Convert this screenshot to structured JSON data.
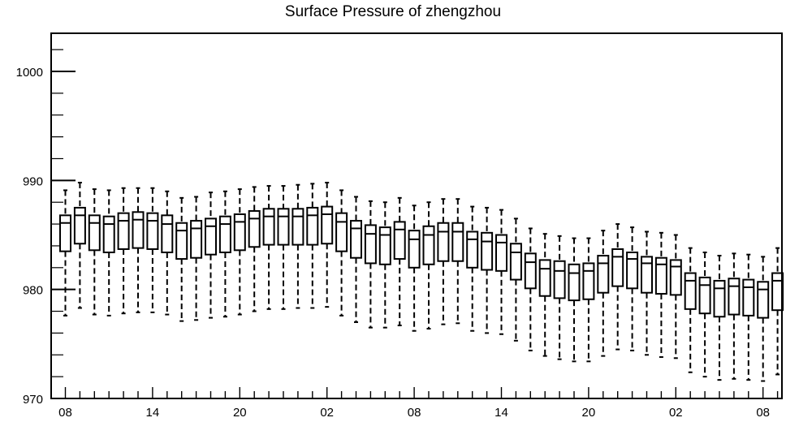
{
  "chart_data": {
    "type": "box",
    "title": "Surface Pressure of zhengzhou",
    "xlabel": "",
    "ylabel": "",
    "ylim": [
      970,
      1003.5
    ],
    "y_ticks": [
      "970",
      "980",
      "990",
      "1000"
    ],
    "x_tick_labels": [
      "08",
      "14",
      "20",
      "02",
      "08",
      "14",
      "20",
      "02",
      "08"
    ],
    "x_tick_label_steps": [
      0,
      6,
      12,
      18,
      24,
      30,
      36,
      42,
      48
    ],
    "boxes": [
      {
        "step": 0,
        "lo": 977.6,
        "q1": 983.5,
        "med": 986.1,
        "q3": 986.8,
        "hi": 989.1
      },
      {
        "step": 1,
        "lo": 978.3,
        "q1": 984.2,
        "med": 986.8,
        "q3": 987.5,
        "hi": 989.8
      },
      {
        "step": 2,
        "lo": 977.7,
        "q1": 983.6,
        "med": 986.1,
        "q3": 986.8,
        "hi": 989.2
      },
      {
        "step": 3,
        "lo": 977.6,
        "q1": 983.4,
        "med": 986.0,
        "q3": 986.7,
        "hi": 989.1
      },
      {
        "step": 4,
        "lo": 977.8,
        "q1": 983.7,
        "med": 986.3,
        "q3": 987.0,
        "hi": 989.3
      },
      {
        "step": 5,
        "lo": 977.9,
        "q1": 983.8,
        "med": 986.4,
        "q3": 987.1,
        "hi": 989.3
      },
      {
        "step": 6,
        "lo": 977.9,
        "q1": 983.7,
        "med": 986.3,
        "q3": 987.0,
        "hi": 989.3
      },
      {
        "step": 7,
        "lo": 977.7,
        "q1": 983.4,
        "med": 986.0,
        "q3": 986.8,
        "hi": 989.0
      },
      {
        "step": 8,
        "lo": 977.1,
        "q1": 982.8,
        "med": 985.4,
        "q3": 986.1,
        "hi": 988.4
      },
      {
        "step": 9,
        "lo": 977.2,
        "q1": 982.9,
        "med": 985.6,
        "q3": 986.3,
        "hi": 988.5
      },
      {
        "step": 10,
        "lo": 977.4,
        "q1": 983.2,
        "med": 985.8,
        "q3": 986.5,
        "hi": 988.9
      },
      {
        "step": 11,
        "lo": 977.5,
        "q1": 983.4,
        "med": 986.0,
        "q3": 986.7,
        "hi": 989.0
      },
      {
        "step": 12,
        "lo": 977.7,
        "q1": 983.6,
        "med": 986.2,
        "q3": 986.9,
        "hi": 989.2
      },
      {
        "step": 13,
        "lo": 978.0,
        "q1": 983.9,
        "med": 986.5,
        "q3": 987.2,
        "hi": 989.4
      },
      {
        "step": 14,
        "lo": 978.2,
        "q1": 984.1,
        "med": 986.7,
        "q3": 987.4,
        "hi": 989.5
      },
      {
        "step": 15,
        "lo": 978.2,
        "q1": 984.1,
        "med": 986.7,
        "q3": 987.4,
        "hi": 989.5
      },
      {
        "step": 16,
        "lo": 978.3,
        "q1": 984.1,
        "med": 986.7,
        "q3": 987.4,
        "hi": 989.6
      },
      {
        "step": 17,
        "lo": 978.3,
        "q1": 984.1,
        "med": 986.8,
        "q3": 987.5,
        "hi": 989.7
      },
      {
        "step": 18,
        "lo": 978.4,
        "q1": 984.2,
        "med": 986.9,
        "q3": 987.6,
        "hi": 989.8
      },
      {
        "step": 19,
        "lo": 977.6,
        "q1": 983.5,
        "med": 986.2,
        "q3": 987.0,
        "hi": 989.1
      },
      {
        "step": 20,
        "lo": 977.0,
        "q1": 982.9,
        "med": 985.6,
        "q3": 986.3,
        "hi": 988.5
      },
      {
        "step": 21,
        "lo": 976.5,
        "q1": 982.4,
        "med": 985.1,
        "q3": 985.9,
        "hi": 988.1
      },
      {
        "step": 22,
        "lo": 976.5,
        "q1": 982.3,
        "med": 985.0,
        "q3": 985.7,
        "hi": 988.0
      },
      {
        "step": 23,
        "lo": 976.7,
        "q1": 982.8,
        "med": 985.5,
        "q3": 986.2,
        "hi": 988.4
      },
      {
        "step": 24,
        "lo": 976.2,
        "q1": 982.0,
        "med": 984.6,
        "q3": 985.4,
        "hi": 987.7
      },
      {
        "step": 25,
        "lo": 976.4,
        "q1": 982.3,
        "med": 985.0,
        "q3": 985.8,
        "hi": 988.0
      },
      {
        "step": 26,
        "lo": 976.8,
        "q1": 982.6,
        "med": 985.3,
        "q3": 986.1,
        "hi": 988.3
      },
      {
        "step": 27,
        "lo": 976.9,
        "q1": 982.6,
        "med": 985.3,
        "q3": 986.1,
        "hi": 988.3
      },
      {
        "step": 28,
        "lo": 976.2,
        "q1": 982.0,
        "med": 984.6,
        "q3": 985.3,
        "hi": 987.6
      },
      {
        "step": 29,
        "lo": 976.0,
        "q1": 981.8,
        "med": 984.4,
        "q3": 985.2,
        "hi": 987.5
      },
      {
        "step": 30,
        "lo": 975.9,
        "q1": 981.7,
        "med": 984.3,
        "q3": 985.0,
        "hi": 987.3
      },
      {
        "step": 31,
        "lo": 975.3,
        "q1": 980.9,
        "med": 983.4,
        "q3": 984.2,
        "hi": 986.5
      },
      {
        "step": 32,
        "lo": 974.4,
        "q1": 980.1,
        "med": 982.5,
        "q3": 983.3,
        "hi": 985.6
      },
      {
        "step": 33,
        "lo": 973.9,
        "q1": 979.4,
        "med": 981.9,
        "q3": 982.7,
        "hi": 985.1
      },
      {
        "step": 34,
        "lo": 973.6,
        "q1": 979.2,
        "med": 981.7,
        "q3": 982.6,
        "hi": 984.9
      },
      {
        "step": 35,
        "lo": 973.4,
        "q1": 979.0,
        "med": 981.5,
        "q3": 982.3,
        "hi": 984.7
      },
      {
        "step": 36,
        "lo": 973.4,
        "q1": 979.1,
        "med": 981.7,
        "q3": 982.4,
        "hi": 984.7
      },
      {
        "step": 37,
        "lo": 973.9,
        "q1": 979.7,
        "med": 982.4,
        "q3": 983.1,
        "hi": 985.4
      },
      {
        "step": 38,
        "lo": 974.5,
        "q1": 980.3,
        "med": 983.0,
        "q3": 983.7,
        "hi": 986.0
      },
      {
        "step": 39,
        "lo": 974.4,
        "q1": 980.1,
        "med": 982.8,
        "q3": 983.4,
        "hi": 985.7
      },
      {
        "step": 40,
        "lo": 974.0,
        "q1": 979.7,
        "med": 982.4,
        "q3": 983.0,
        "hi": 985.3
      },
      {
        "step": 41,
        "lo": 973.8,
        "q1": 979.6,
        "med": 982.3,
        "q3": 982.9,
        "hi": 985.2
      },
      {
        "step": 42,
        "lo": 973.7,
        "q1": 979.5,
        "med": 982.1,
        "q3": 982.7,
        "hi": 985.0
      },
      {
        "step": 43,
        "lo": 972.4,
        "q1": 978.2,
        "med": 980.8,
        "q3": 981.5,
        "hi": 983.8
      },
      {
        "step": 44,
        "lo": 972.0,
        "q1": 977.8,
        "med": 980.4,
        "q3": 981.1,
        "hi": 983.4
      },
      {
        "step": 45,
        "lo": 971.7,
        "q1": 977.5,
        "med": 980.1,
        "q3": 980.8,
        "hi": 983.1
      },
      {
        "step": 46,
        "lo": 971.8,
        "q1": 977.7,
        "med": 980.3,
        "q3": 981.0,
        "hi": 983.3
      },
      {
        "step": 47,
        "lo": 971.7,
        "q1": 977.6,
        "med": 980.2,
        "q3": 980.9,
        "hi": 983.2
      },
      {
        "step": 48,
        "lo": 971.6,
        "q1": 977.4,
        "med": 980.0,
        "q3": 980.7,
        "hi": 983.0
      },
      {
        "step": 49,
        "lo": 972.2,
        "q1": 978.1,
        "med": 980.8,
        "q3": 981.5,
        "hi": 983.8
      }
    ]
  }
}
